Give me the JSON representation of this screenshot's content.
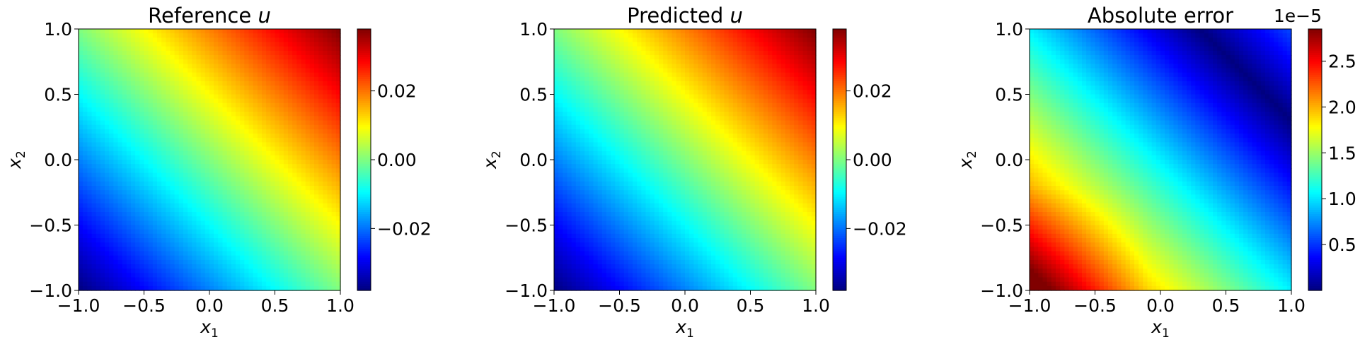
{
  "chart_data": [
    {
      "type": "heatmap",
      "title": "Reference u",
      "title_main": "Reference ",
      "title_var": "u",
      "xlabel_var": "x",
      "xlabel_sub": "1",
      "ylabel_var": "x",
      "ylabel_sub": "2",
      "xlim": [
        -1.0,
        1.0
      ],
      "ylim": [
        -1.0,
        1.0
      ],
      "xticks": [
        -1.0,
        -0.5,
        0.0,
        0.5,
        1.0
      ],
      "yticks": [
        -1.0,
        -0.5,
        0.0,
        0.5,
        1.0
      ],
      "xtick_labels": [
        "−1.0",
        "−0.5",
        "0.0",
        "0.5",
        "1.0"
      ],
      "ytick_labels": [
        "−1.0",
        "−0.5",
        "0.0",
        "0.5",
        "1.0"
      ],
      "colormap": "jet",
      "field": "linear in (x1 + x2)",
      "corner_values": {
        "x1=-1,x2=-1": -0.038,
        "x1=1,x2=1": 0.038,
        "x1=-1,x2=1": 0.0,
        "x1=1,x2=-1": 0.0
      },
      "colorbar": {
        "range": [
          -0.038,
          0.038
        ],
        "ticks": [
          -0.02,
          0.0,
          0.02
        ],
        "tick_labels": [
          "−0.02",
          "0.00",
          "0.02"
        ],
        "offset_label": ""
      }
    },
    {
      "type": "heatmap",
      "title": "Predicted u",
      "title_main": "Predicted ",
      "title_var": "u",
      "xlabel_var": "x",
      "xlabel_sub": "1",
      "ylabel_var": "x",
      "ylabel_sub": "2",
      "xlim": [
        -1.0,
        1.0
      ],
      "ylim": [
        -1.0,
        1.0
      ],
      "xticks": [
        -1.0,
        -0.5,
        0.0,
        0.5,
        1.0
      ],
      "yticks": [
        -1.0,
        -0.5,
        0.0,
        0.5,
        1.0
      ],
      "xtick_labels": [
        "−1.0",
        "−0.5",
        "0.0",
        "0.5",
        "1.0"
      ],
      "ytick_labels": [
        "−1.0",
        "−0.5",
        "0.0",
        "0.5",
        "1.0"
      ],
      "colormap": "jet",
      "field": "linear in (x1 + x2)",
      "corner_values": {
        "x1=-1,x2=-1": -0.038,
        "x1=1,x2=1": 0.038,
        "x1=-1,x2=1": 0.0,
        "x1=1,x2=-1": 0.0
      },
      "colorbar": {
        "range": [
          -0.038,
          0.038
        ],
        "ticks": [
          -0.02,
          0.0,
          0.02
        ],
        "tick_labels": [
          "−0.02",
          "0.00",
          "0.02"
        ],
        "offset_label": ""
      }
    },
    {
      "type": "heatmap",
      "title": "Absolute error",
      "title_main": "Absolute error",
      "title_var": "",
      "xlabel_var": "x",
      "xlabel_sub": "1",
      "ylabel_var": "x",
      "ylabel_sub": "2",
      "xlim": [
        -1.0,
        1.0
      ],
      "ylim": [
        -1.0,
        1.0
      ],
      "xticks": [
        -1.0,
        -0.5,
        0.0,
        0.5,
        1.0
      ],
      "yticks": [
        -1.0,
        -0.5,
        0.0,
        0.5,
        1.0
      ],
      "xtick_labels": [
        "−1.0",
        "−0.5",
        "0.0",
        "0.5",
        "1.0"
      ],
      "ytick_labels": [
        "−1.0",
        "−0.5",
        "0.0",
        "0.5",
        "1.0"
      ],
      "colormap": "jet",
      "field": "error minimum along band near upper-right, maximum at lower-left corner",
      "corner_values": {
        "x1=-1,x2=-1": 2.8e-05,
        "x1=1,x2=-1": 1.7e-05,
        "x1=-1,x2=1": 7e-06,
        "x1=1,x2=1": 3e-06
      },
      "colorbar": {
        "range": [
          0.0,
          2.85e-05
        ],
        "ticks": [
          5e-06,
          1e-05,
          1.5e-05,
          2e-05,
          2.5e-05
        ],
        "tick_labels": [
          "0.5",
          "1.0",
          "1.5",
          "2.0",
          "2.5"
        ],
        "offset_label": "1e−5"
      }
    }
  ]
}
